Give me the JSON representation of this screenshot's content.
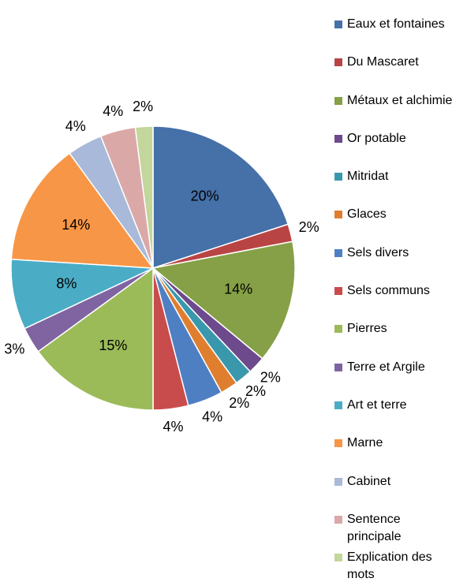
{
  "chart_data": {
    "type": "pie",
    "categories": [
      "Eaux et fontaines",
      "Du Mascaret",
      "Métaux et alchimie",
      "Or potable",
      "Mitridat",
      "Glaces",
      "Sels divers",
      "Sels communs",
      "Pierres",
      "Terre et Argile",
      "Art et terre",
      "Marne",
      "Cabinet",
      "Sentence principale",
      "Explication des mots"
    ],
    "values": [
      20,
      2,
      14,
      2,
      2,
      2,
      4,
      4,
      15,
      3,
      8,
      14,
      4,
      4,
      2
    ],
    "value_labels": [
      "20%",
      "2%",
      "14%",
      "2%",
      "2%",
      "2%",
      "4%",
      "4%",
      "15%",
      "3%",
      "8%",
      "14%",
      "4%",
      "4%",
      "2%"
    ],
    "colors": [
      "#4570a8",
      "#b94444",
      "#85a046",
      "#6c4a8c",
      "#3a98ad",
      "#e07e30",
      "#4f7fc3",
      "#c94c4c",
      "#9bbb59",
      "#8064a2",
      "#4bacc6",
      "#f79646",
      "#a9b9d9",
      "#dba8a8",
      "#c3d69b"
    ],
    "legend": "right"
  }
}
